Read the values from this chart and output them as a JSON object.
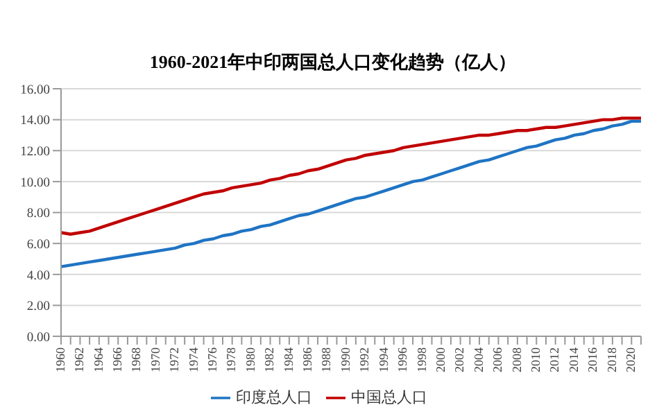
{
  "chart_data": {
    "type": "line",
    "title": "1960-2021年中印两国总人口变化趋势（亿人）",
    "categories": [
      "1960",
      null,
      "1962",
      null,
      "1964",
      null,
      "1966",
      null,
      "1968",
      null,
      "1970",
      null,
      "1972",
      null,
      "1974",
      null,
      "1976",
      null,
      "1978",
      null,
      "1980",
      null,
      "1982",
      null,
      "1984",
      null,
      "1986",
      null,
      "1988",
      null,
      "1990",
      null,
      "1992",
      null,
      "1994",
      null,
      "1996",
      null,
      "1998",
      null,
      "2000",
      null,
      "2002",
      null,
      "2004",
      null,
      "2006",
      null,
      "2008",
      null,
      "2010",
      null,
      "2012",
      null,
      "2014",
      null,
      "2016",
      null,
      "2018",
      null,
      "2020",
      null
    ],
    "series": [
      {
        "name": "印度总人口",
        "color": "#1f74c4",
        "values": [
          4.5,
          4.6,
          4.7,
          4.8,
          4.9,
          5.0,
          5.1,
          5.2,
          5.3,
          5.4,
          5.5,
          5.6,
          5.7,
          5.9,
          6.0,
          6.2,
          6.3,
          6.5,
          6.6,
          6.8,
          6.9,
          7.1,
          7.2,
          7.4,
          7.6,
          7.8,
          7.9,
          8.1,
          8.3,
          8.5,
          8.7,
          8.9,
          9.0,
          9.2,
          9.4,
          9.6,
          9.8,
          10.0,
          10.1,
          10.3,
          10.5,
          10.7,
          10.9,
          11.1,
          11.3,
          11.4,
          11.6,
          11.8,
          12.0,
          12.2,
          12.3,
          12.5,
          12.7,
          12.8,
          13.0,
          13.1,
          13.3,
          13.4,
          13.6,
          13.7,
          13.9,
          13.9
        ]
      },
      {
        "name": "中国总人口",
        "color": "#c00000",
        "values": [
          6.7,
          6.6,
          6.7,
          6.8,
          7.0,
          7.2,
          7.4,
          7.6,
          7.8,
          8.0,
          8.2,
          8.4,
          8.6,
          8.8,
          9.0,
          9.2,
          9.3,
          9.4,
          9.6,
          9.7,
          9.8,
          9.9,
          10.1,
          10.2,
          10.4,
          10.5,
          10.7,
          10.8,
          11.0,
          11.2,
          11.4,
          11.5,
          11.7,
          11.8,
          11.9,
          12.0,
          12.2,
          12.3,
          12.4,
          12.5,
          12.6,
          12.7,
          12.8,
          12.9,
          13.0,
          13.0,
          13.1,
          13.2,
          13.3,
          13.3,
          13.4,
          13.5,
          13.5,
          13.6,
          13.7,
          13.8,
          13.9,
          14.0,
          14.0,
          14.1,
          14.1,
          14.1
        ]
      }
    ],
    "ylim": [
      0,
      16
    ],
    "yticks": [
      {
        "value": 0,
        "label": "0.00"
      },
      {
        "value": 2,
        "label": "2.00"
      },
      {
        "value": 4,
        "label": "4.00"
      },
      {
        "value": 6,
        "label": "6.00"
      },
      {
        "value": 8,
        "label": "8.00"
      },
      {
        "value": 10,
        "label": "10.00"
      },
      {
        "value": 12,
        "label": "12.00"
      },
      {
        "value": 14,
        "label": "14.00"
      },
      {
        "value": 16,
        "label": "16.00"
      }
    ],
    "grid": "y",
    "legend": "bottom",
    "marker": "none",
    "line_style": "solid"
  }
}
